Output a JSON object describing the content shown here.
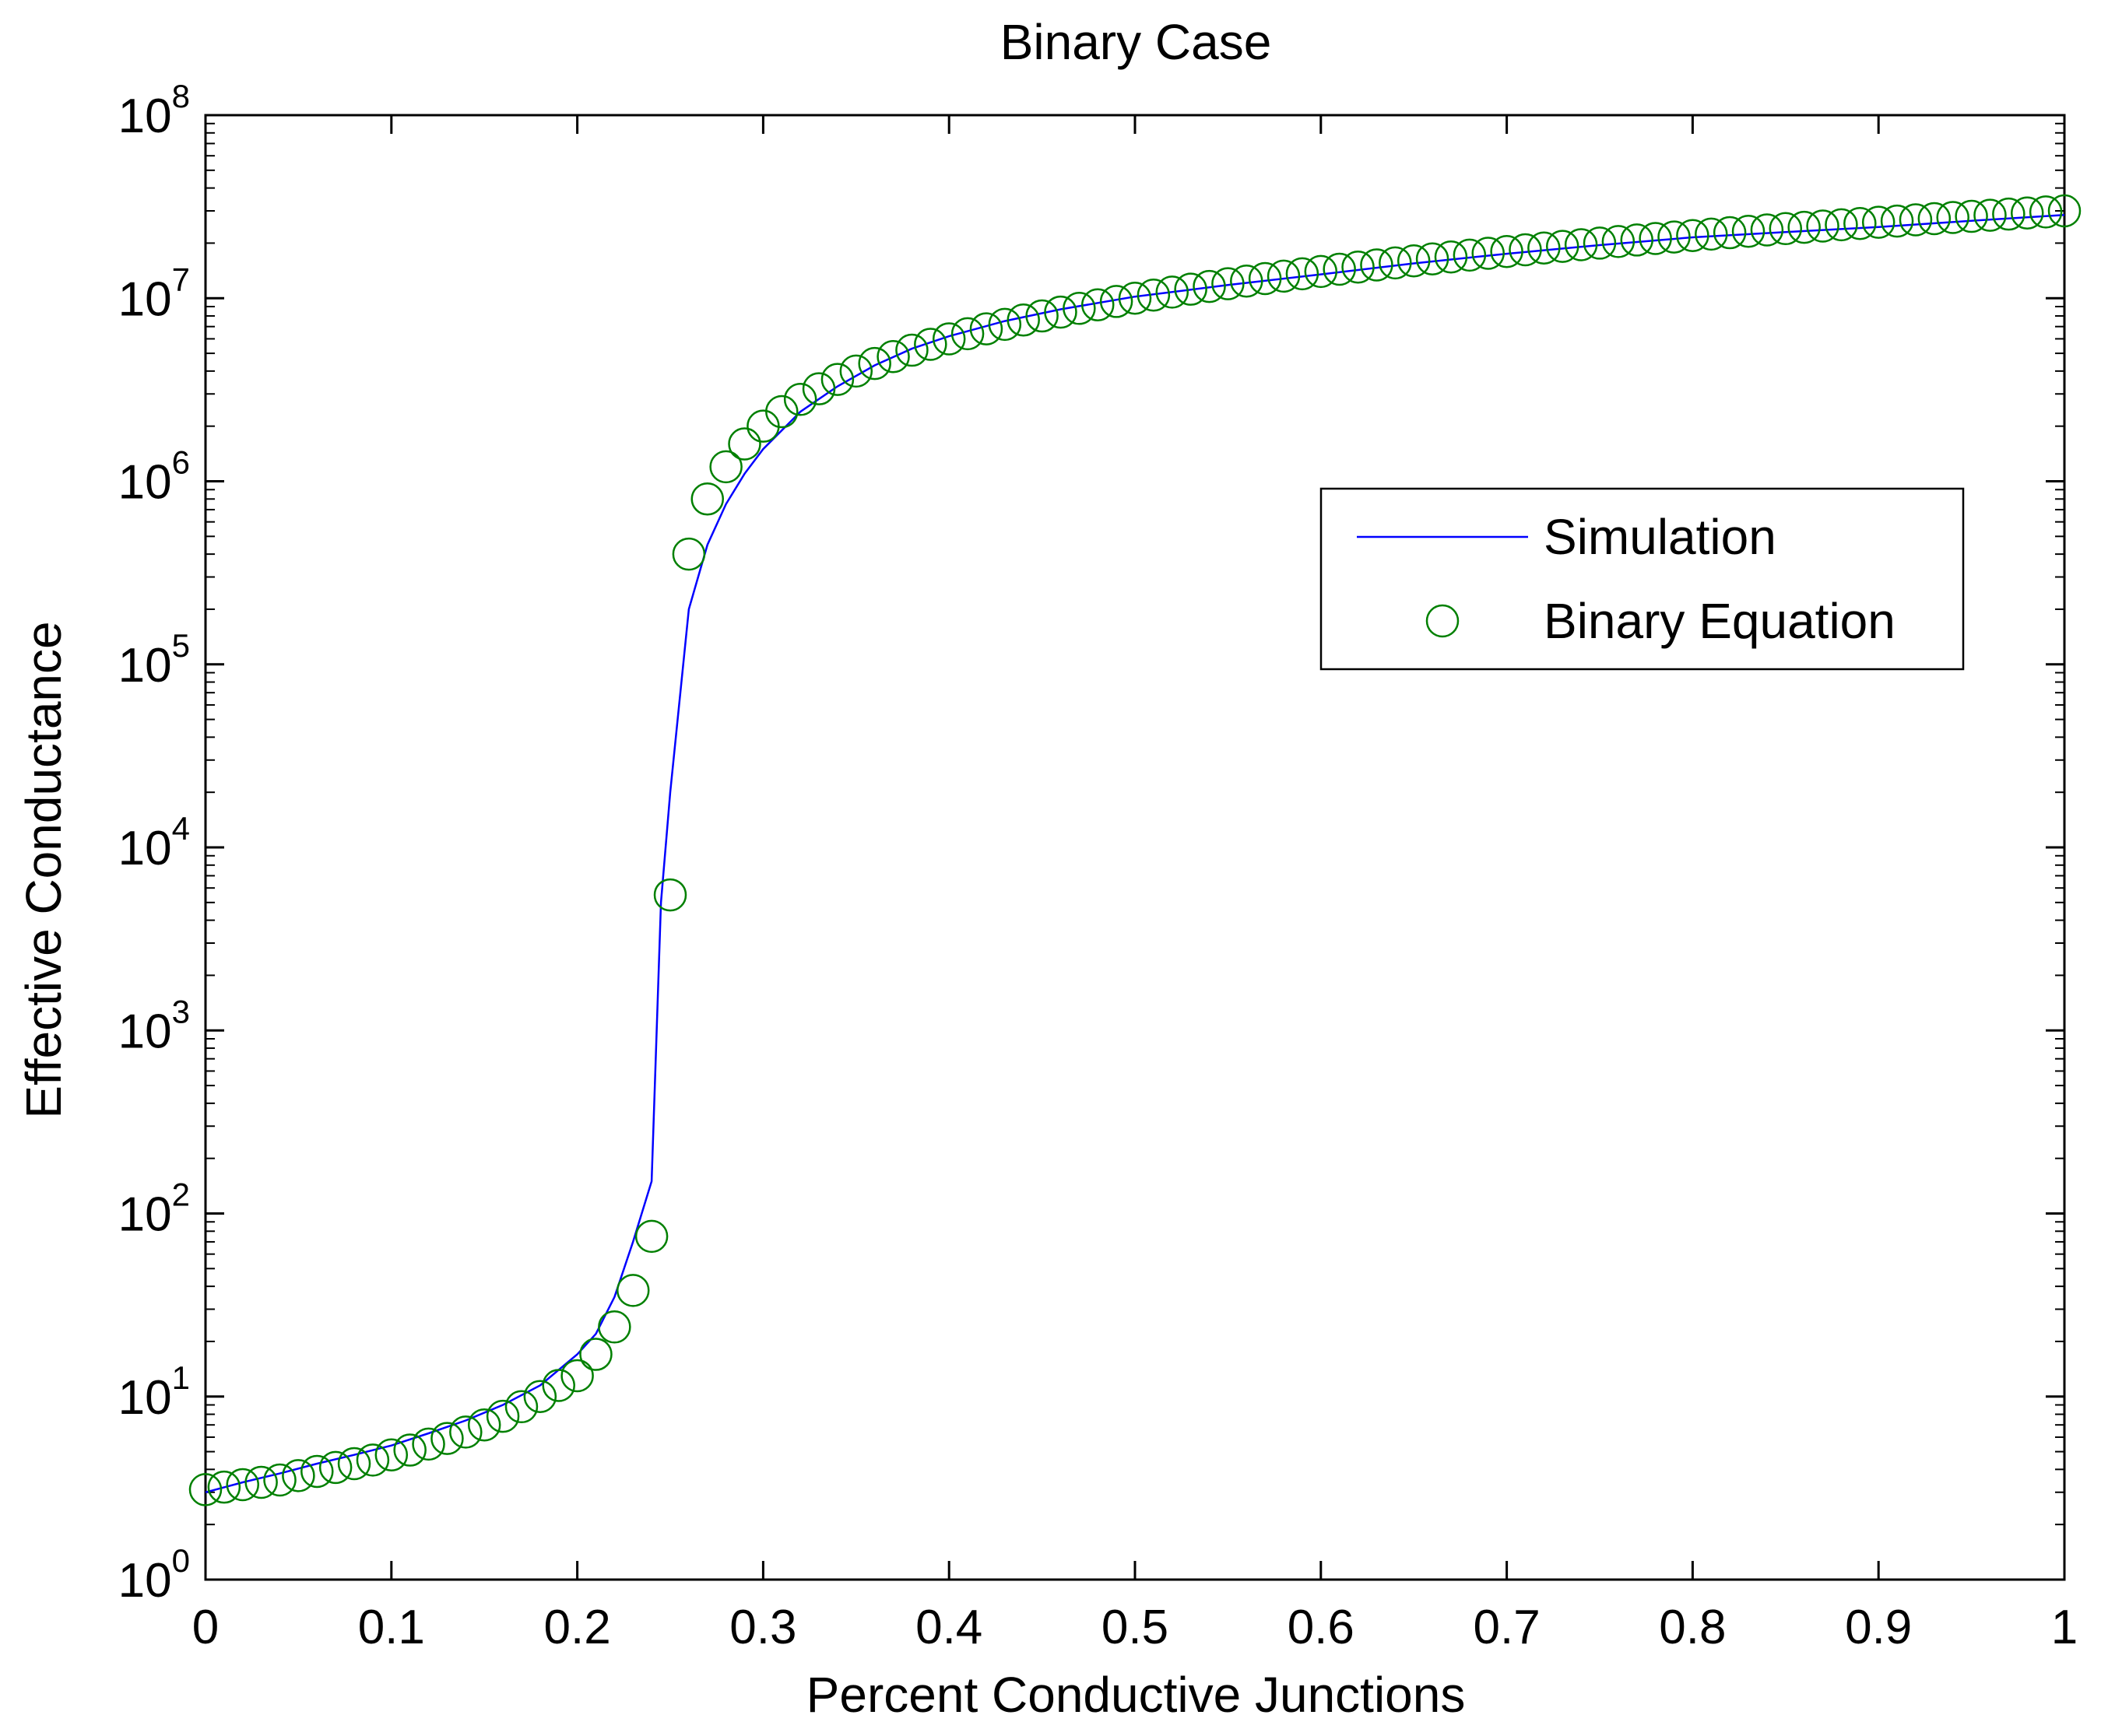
{
  "chart_data": {
    "type": "line",
    "title": "Binary Case",
    "xlabel": "Percent Conductive Junctions",
    "ylabel": "Effective Conductance",
    "xlim": [
      0,
      1
    ],
    "ylim": [
      1,
      100000000
    ],
    "yscale": "log",
    "grid": false,
    "legend_position": "right",
    "x_ticks": [
      "0",
      "0.1",
      "0.2",
      "0.3",
      "0.4",
      "0.5",
      "0.6",
      "0.7",
      "0.8",
      "0.9",
      "1"
    ],
    "y_ticks": [
      {
        "base": "10",
        "exp": "0"
      },
      {
        "base": "10",
        "exp": "1"
      },
      {
        "base": "10",
        "exp": "2"
      },
      {
        "base": "10",
        "exp": "3"
      },
      {
        "base": "10",
        "exp": "4"
      },
      {
        "base": "10",
        "exp": "5"
      },
      {
        "base": "10",
        "exp": "6"
      },
      {
        "base": "10",
        "exp": "7"
      },
      {
        "base": "10",
        "exp": "8"
      }
    ],
    "series": [
      {
        "name": "Simulation",
        "style": "line",
        "color": "#0000ff",
        "x": [
          0.0,
          0.02,
          0.04,
          0.06,
          0.08,
          0.1,
          0.12,
          0.14,
          0.16,
          0.18,
          0.2,
          0.21,
          0.22,
          0.23,
          0.24,
          0.245,
          0.25,
          0.26,
          0.27,
          0.28,
          0.29,
          0.3,
          0.32,
          0.34,
          0.36,
          0.38,
          0.4,
          0.43,
          0.46,
          0.5,
          0.55,
          0.6,
          0.65,
          0.7,
          0.75,
          0.8,
          0.85,
          0.9,
          0.95,
          1.0
        ],
        "values": [
          3.0,
          3.4,
          3.8,
          4.3,
          4.8,
          5.4,
          6.3,
          7.4,
          9.0,
          11.5,
          17,
          22,
          35,
          70,
          150,
          5000,
          20000,
          200000,
          450000,
          750000,
          1100000,
          1500000,
          2400000,
          3300000,
          4300000,
          5300000,
          6200000,
          7500000,
          8700000,
          10200000,
          11800000,
          13500000,
          15500000,
          17500000,
          19500000,
          21500000,
          23000000,
          24500000,
          26500000,
          28500000
        ]
      },
      {
        "name": "Binary Equation",
        "style": "marker",
        "color": "#008000",
        "x": [
          0.0,
          0.01,
          0.02,
          0.03,
          0.04,
          0.05,
          0.06,
          0.07,
          0.08,
          0.09,
          0.1,
          0.11,
          0.12,
          0.13,
          0.14,
          0.15,
          0.16,
          0.17,
          0.18,
          0.19,
          0.2,
          0.21,
          0.22,
          0.23,
          0.24,
          0.25,
          0.26,
          0.27,
          0.28,
          0.29,
          0.3,
          0.31,
          0.32,
          0.33,
          0.34,
          0.35,
          0.36,
          0.37,
          0.38,
          0.39,
          0.4,
          0.41,
          0.42,
          0.43,
          0.44,
          0.45,
          0.46,
          0.47,
          0.48,
          0.49,
          0.5,
          0.51,
          0.52,
          0.53,
          0.54,
          0.55,
          0.56,
          0.57,
          0.58,
          0.59,
          0.6,
          0.61,
          0.62,
          0.63,
          0.64,
          0.65,
          0.66,
          0.67,
          0.68,
          0.69,
          0.7,
          0.71,
          0.72,
          0.73,
          0.74,
          0.75,
          0.76,
          0.77,
          0.78,
          0.79,
          0.8,
          0.81,
          0.82,
          0.83,
          0.84,
          0.85,
          0.86,
          0.87,
          0.88,
          0.89,
          0.9,
          0.91,
          0.92,
          0.93,
          0.94,
          0.95,
          0.96,
          0.97,
          0.98,
          0.99,
          1.0
        ],
        "values": [
          3.1,
          3.2,
          3.3,
          3.4,
          3.5,
          3.7,
          3.9,
          4.1,
          4.3,
          4.5,
          4.8,
          5.1,
          5.5,
          5.9,
          6.4,
          7.0,
          7.8,
          8.8,
          10.0,
          11.5,
          13,
          17,
          24,
          38,
          75,
          5500,
          400000,
          800000,
          1200000,
          1600000,
          2000000,
          2400000,
          2800000,
          3200000,
          3600000,
          4000000,
          4400000,
          4800000,
          5200000,
          5600000,
          6000000,
          6400000,
          6800000,
          7200000,
          7600000,
          8000000,
          8400000,
          8800000,
          9200000,
          9600000,
          10000000,
          10400000,
          10800000,
          11200000,
          11600000,
          12000000,
          12400000,
          12800000,
          13200000,
          13600000,
          14000000,
          14400000,
          14800000,
          15200000,
          15600000,
          16000000,
          16400000,
          16800000,
          17200000,
          17600000,
          18000000,
          18400000,
          18800000,
          19200000,
          19600000,
          20000000,
          20400000,
          20800000,
          21200000,
          21600000,
          22000000,
          22400000,
          22800000,
          23200000,
          23600000,
          24000000,
          24400000,
          24800000,
          25200000,
          25600000,
          26000000,
          26400000,
          26800000,
          27200000,
          27600000,
          28000000,
          28400000,
          28800000,
          29200000,
          29600000,
          30000000
        ]
      }
    ]
  }
}
